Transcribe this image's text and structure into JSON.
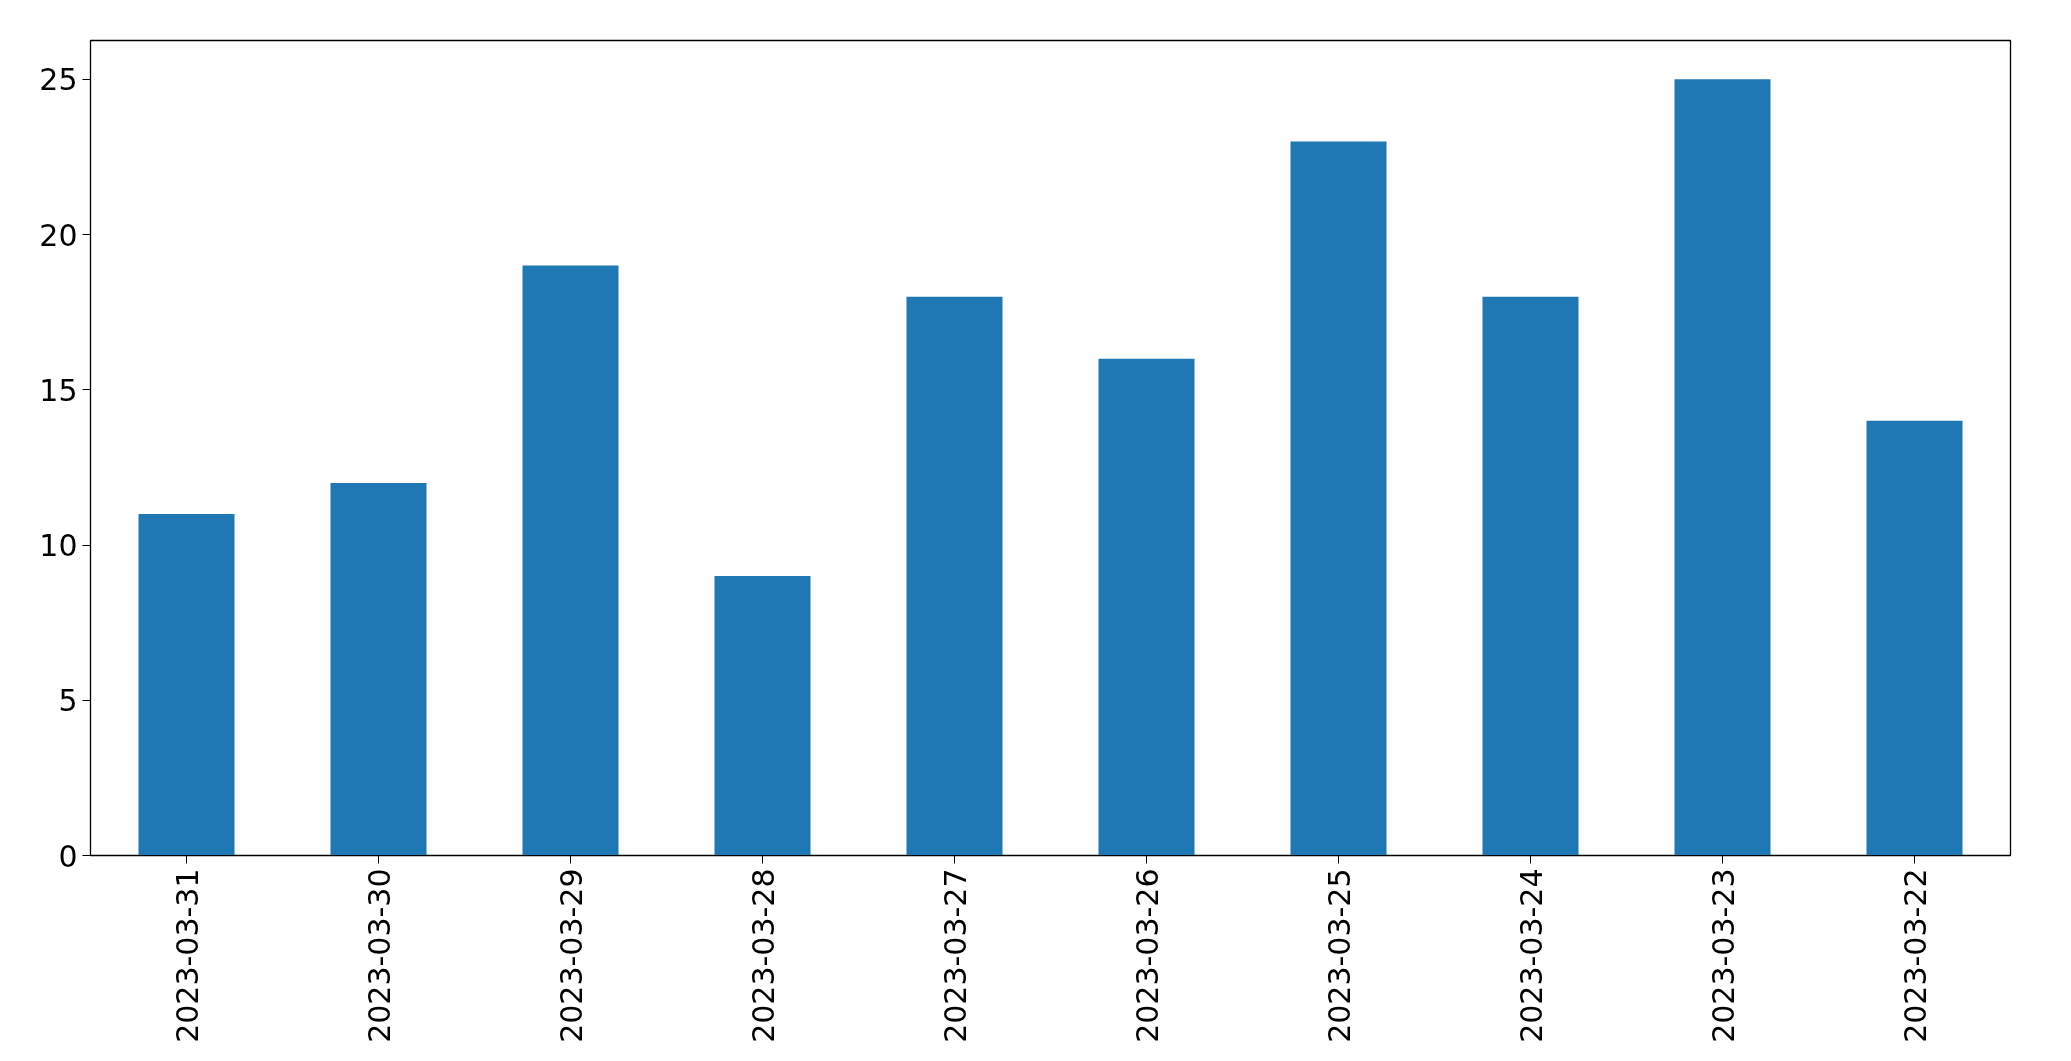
{
  "chart_data": {
    "type": "bar",
    "categories": [
      "2023-03-31",
      "2023-03-30",
      "2023-03-29",
      "2023-03-28",
      "2023-03-27",
      "2023-03-26",
      "2023-03-25",
      "2023-03-24",
      "2023-03-23",
      "2023-03-22"
    ],
    "values": [
      11,
      12,
      19,
      9,
      18,
      16,
      23,
      18,
      25,
      14
    ],
    "color": "#1f77b4",
    "ylim": [
      0,
      26.25
    ],
    "yticks": [
      0,
      5,
      10,
      15,
      20,
      25
    ],
    "grid": false
  }
}
